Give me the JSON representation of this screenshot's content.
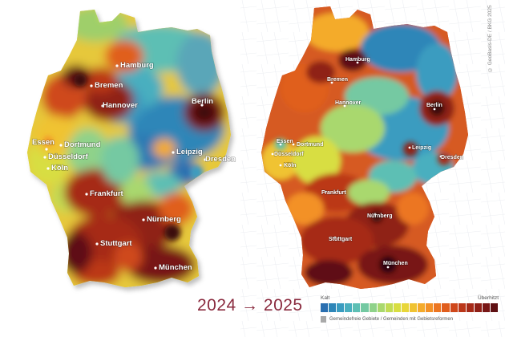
{
  "maps": [
    {
      "id": "left",
      "cities": [
        {
          "name": "Hamburg"
        },
        {
          "name": "Bremen"
        },
        {
          "name": "Hannover"
        },
        {
          "name": "Berlin"
        },
        {
          "name": "Essen"
        },
        {
          "name": "Dortmund"
        },
        {
          "name": "Düsseldorf"
        },
        {
          "name": "Köln"
        },
        {
          "name": "Leipzig"
        },
        {
          "name": "Dresden"
        },
        {
          "name": "Frankfurt"
        },
        {
          "name": "Nürnberg"
        },
        {
          "name": "Stuttgart"
        },
        {
          "name": "München"
        }
      ]
    },
    {
      "id": "right",
      "cities": [
        {
          "name": "Hamburg"
        },
        {
          "name": "Bremen"
        },
        {
          "name": "Hannover"
        },
        {
          "name": "Berlin"
        },
        {
          "name": "Essen"
        },
        {
          "name": "Dortmund"
        },
        {
          "name": "Düsseldorf"
        },
        {
          "name": "Köln"
        },
        {
          "name": "Leipzig"
        },
        {
          "name": "Dresden"
        },
        {
          "name": "Frankfurt"
        },
        {
          "name": "Nürnberg"
        },
        {
          "name": "Stuttgart"
        },
        {
          "name": "München"
        }
      ]
    }
  ],
  "year_label": "2024 → 2025",
  "legend": {
    "low_label": "Kalt",
    "high_label": "Überhitzt",
    "colors": [
      "#2a6fb0",
      "#2e86b8",
      "#3a9cc0",
      "#4aafbf",
      "#5dbfb4",
      "#74c9a2",
      "#8fd28a",
      "#a9d86e",
      "#c2dc54",
      "#d8de42",
      "#e8d63a",
      "#f0c332",
      "#f4ab2c",
      "#f39127",
      "#ec7622",
      "#e05e1e",
      "#cf481b",
      "#bb3719",
      "#a62a18",
      "#8f2017",
      "#781716",
      "#5f1013"
    ],
    "note": "Gemeindefreie Gebiete / Gemeinden mit Gebietsreformen",
    "note_color": "#a9a9a9"
  },
  "copyright": "© GeoBasis-DE / BKG 2025"
}
